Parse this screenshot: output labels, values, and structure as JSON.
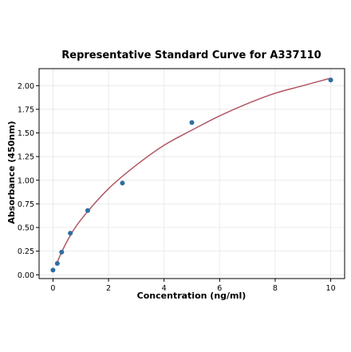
{
  "chart_data": {
    "type": "scatter",
    "title": "Representative Standard Curve for A337110",
    "xlabel": "Concentration (ng/ml)",
    "ylabel": "Absorbance (450nm)",
    "xlim": [
      -0.5,
      10.5
    ],
    "ylim": [
      -0.04,
      2.18
    ],
    "x_ticks": [
      "0",
      "2",
      "4",
      "6",
      "8",
      "10"
    ],
    "y_ticks": [
      "0.00",
      "0.25",
      "0.50",
      "0.75",
      "1.00",
      "1.25",
      "1.50",
      "1.75",
      "2.00"
    ],
    "grid": true,
    "series": [
      {
        "type": "scatter",
        "x": [
          0,
          0.156,
          0.3125,
          0.625,
          1.25,
          2.5,
          5,
          10
        ],
        "y": [
          0.05,
          0.12,
          0.24,
          0.44,
          0.68,
          0.97,
          1.61,
          2.06
        ]
      },
      {
        "type": "line",
        "x": [
          0.1,
          0.5,
          1,
          2,
          3,
          4,
          5,
          6,
          7,
          8,
          9,
          10
        ],
        "y": [
          0.1,
          0.35,
          0.58,
          0.91,
          1.16,
          1.37,
          1.53,
          1.68,
          1.81,
          1.92,
          2.0,
          2.08
        ]
      }
    ],
    "colors": {
      "points": "#2f6ea3",
      "curve": "#b35563",
      "grid": "#e6e6e6",
      "axes": "#000000"
    }
  }
}
